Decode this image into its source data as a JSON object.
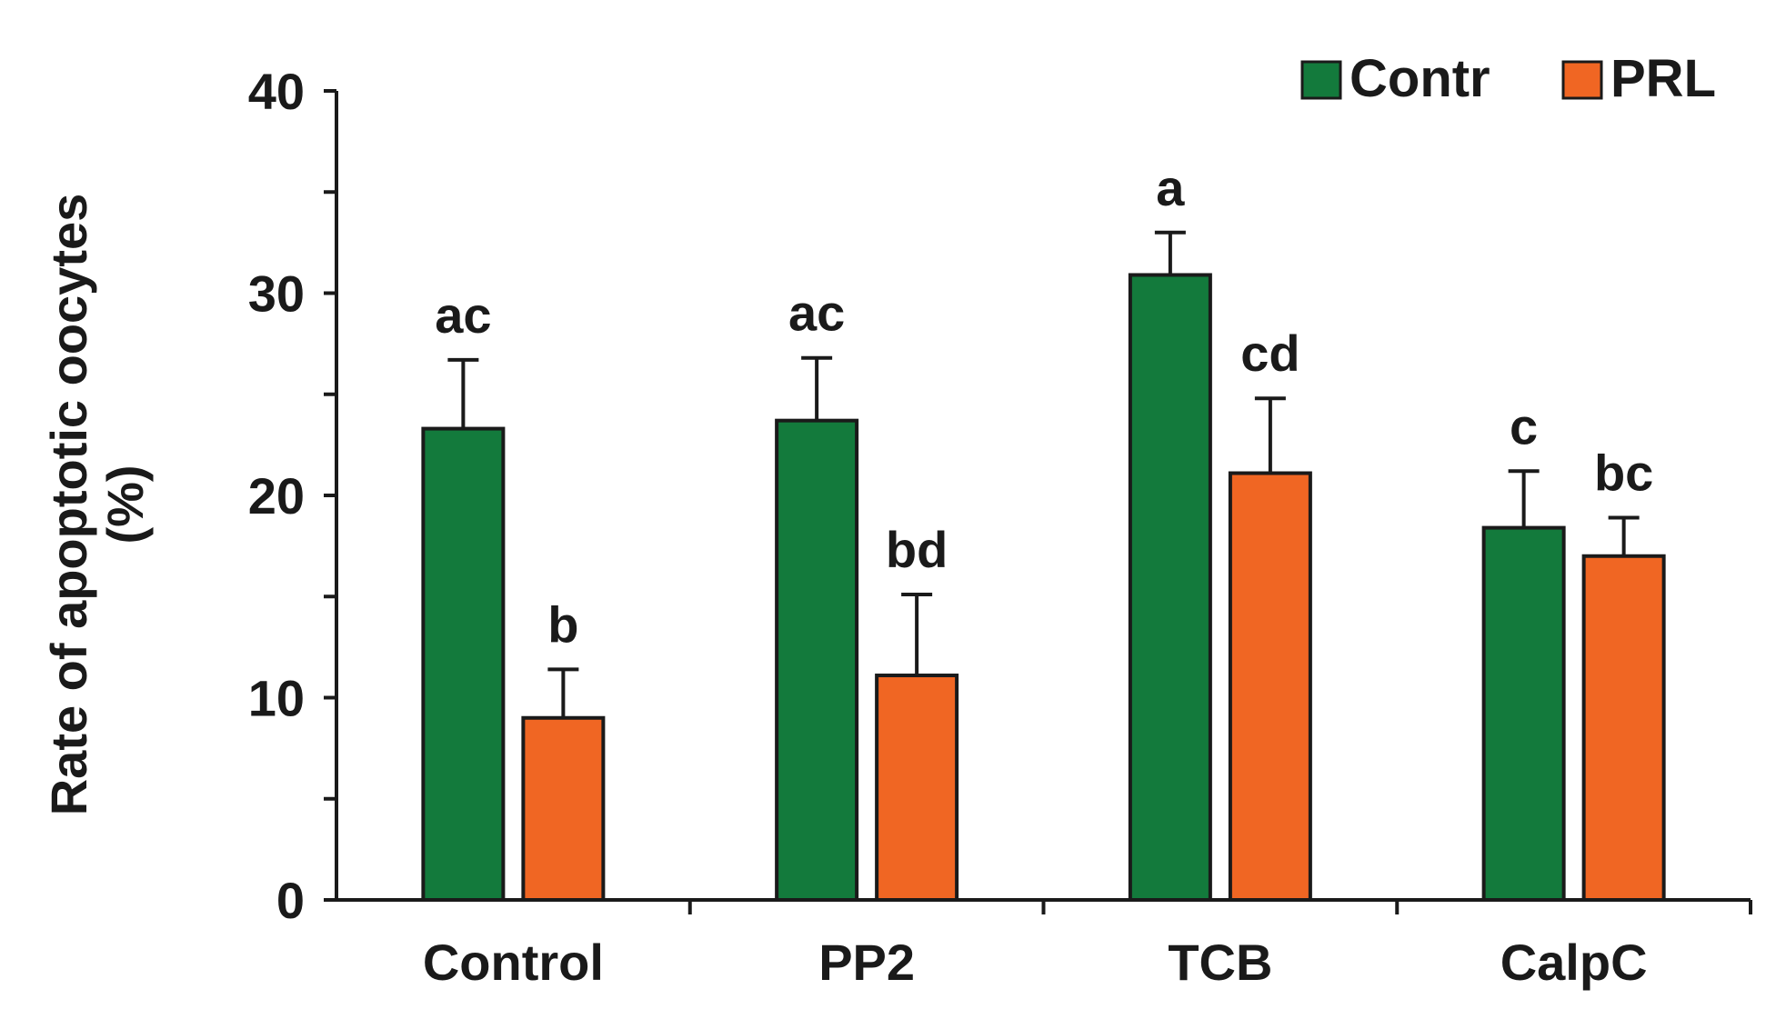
{
  "chart_data": {
    "type": "bar",
    "title": "",
    "xlabel": "",
    "ylabel": "Rate of apoptotic oocytes (%)",
    "ylabel_lines": [
      "Rate of apoptotic oocytes",
      "(%)"
    ],
    "ylim": [
      0,
      40
    ],
    "yticks": [
      "0",
      "10",
      "20",
      "30",
      "40"
    ],
    "categories": [
      "Control",
      "PP2",
      "TCB",
      "CalpC"
    ],
    "series": [
      {
        "name": "Contr",
        "color": "#137a3c",
        "values": [
          23.3,
          23.7,
          30.9,
          18.4
        ],
        "errors": [
          3.4,
          3.1,
          2.1,
          2.8
        ],
        "labels": [
          "ac",
          "ac",
          "a",
          "c"
        ]
      },
      {
        "name": "PRL",
        "color": "#f06623",
        "values": [
          9.0,
          11.1,
          21.1,
          17.0
        ],
        "errors": [
          2.4,
          4.0,
          3.7,
          1.9
        ],
        "labels": [
          "b",
          "bd",
          "cd",
          "bc"
        ]
      }
    ],
    "legend": {
      "position": "top-right",
      "entries": [
        "Contr",
        "PRL"
      ]
    },
    "grid": false
  }
}
